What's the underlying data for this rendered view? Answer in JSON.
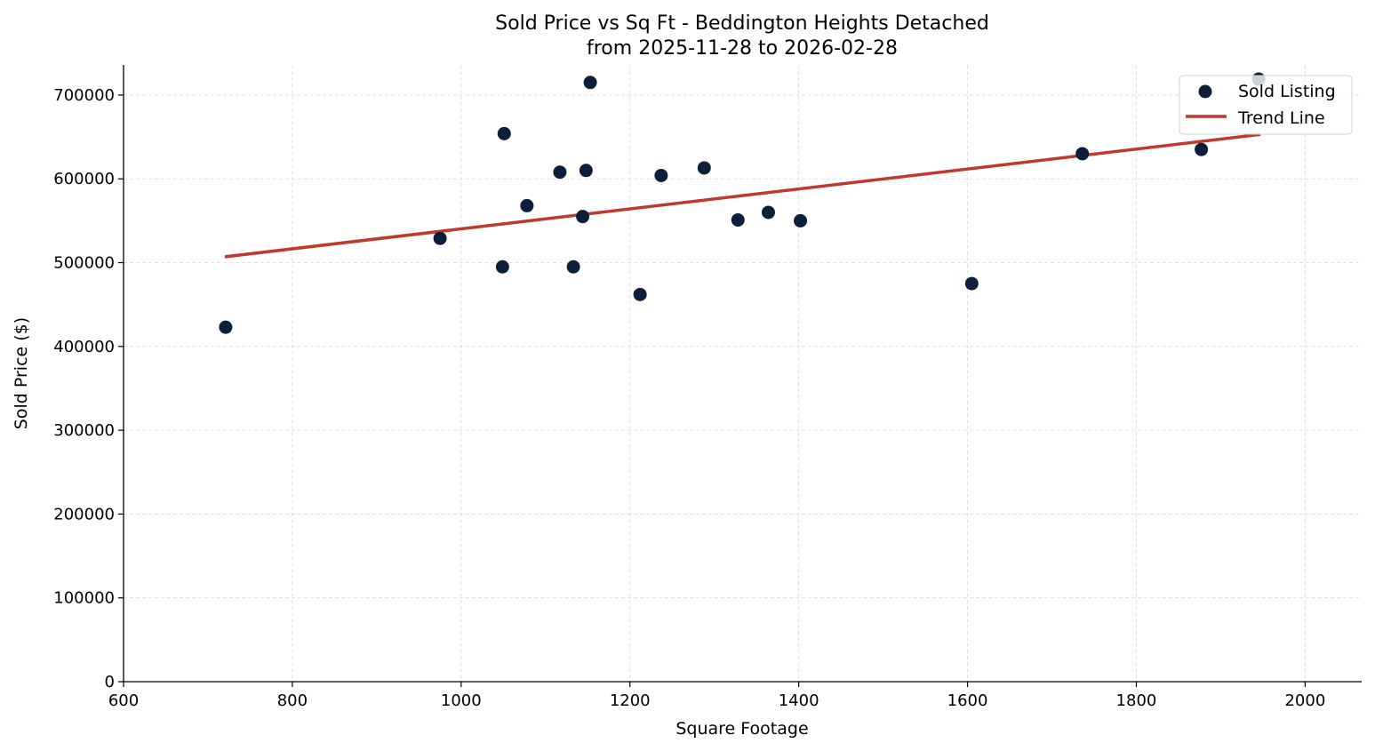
{
  "chart_data": {
    "type": "scatter",
    "title": "Sold Price vs Sq Ft - Beddington Heights Detached",
    "subtitle": "from 2025-11-28 to 2026-02-28",
    "xlabel": "Square Footage",
    "ylabel": "Sold Price ($)",
    "xlim": [
      600,
      2067
    ],
    "ylim": [
      0,
      736000
    ],
    "xticks": [
      600,
      800,
      1000,
      1200,
      1400,
      1600,
      1800,
      2000
    ],
    "yticks": [
      0,
      100000,
      200000,
      300000,
      400000,
      500000,
      600000,
      700000
    ],
    "grid": true,
    "legend_position": "top-right",
    "series": [
      {
        "name": "Sold Listing",
        "type": "scatter",
        "color": "#0b1f3a",
        "x": [
          721,
          975,
          1049,
          1051,
          1078,
          1117,
          1148,
          1144,
          1133,
          1153,
          1212,
          1237,
          1288,
          1328,
          1364,
          1402,
          1605,
          1736,
          1877,
          1945
        ],
        "y": [
          423000,
          529000,
          495000,
          654000,
          568000,
          608000,
          610000,
          555000,
          495000,
          715000,
          462000,
          604000,
          613000,
          551000,
          560000,
          550000,
          475000,
          630000,
          635000,
          719000
        ]
      },
      {
        "name": "Trend Line",
        "type": "line",
        "color": "#c0392b",
        "x": [
          720,
          1947
        ],
        "y": [
          507000,
          653000
        ]
      }
    ]
  }
}
